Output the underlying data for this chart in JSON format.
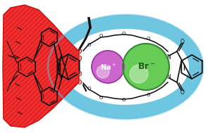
{
  "bg_color": "#ffffff",
  "red_fill": "#f03030",
  "red_hatch": "#cc1010",
  "blue_ring": "#5bbedd",
  "na_purple": "#cc66cc",
  "na_purple_dark": "#993399",
  "br_green": "#66cc55",
  "br_green_dark": "#338833",
  "black": "#111111",
  "o_red": "#dd2222",
  "fig_w": 2.95,
  "fig_h": 1.89,
  "dpi": 100,
  "xlim": [
    0,
    295
  ],
  "ylim": [
    0,
    189
  ]
}
